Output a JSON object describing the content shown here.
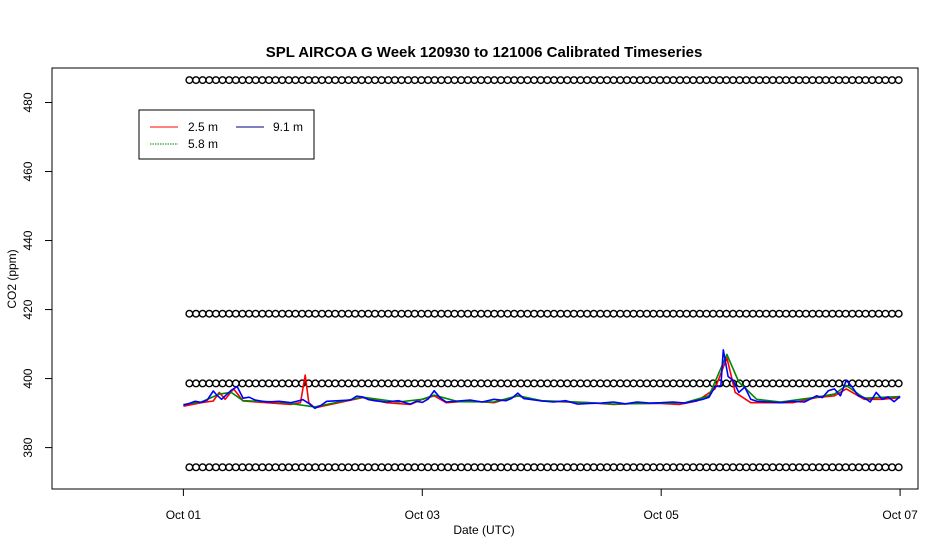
{
  "chart_data": {
    "type": "line",
    "title": "SPL AIRCOA G  Week 120930 to 121006  Calibrated Timeseries",
    "xlabel": "Date (UTC)",
    "ylabel": "CO2 (ppm)",
    "xlim": [
      -1.1,
      6.15
    ],
    "ylim": [
      368,
      490
    ],
    "x_ticks": [
      {
        "x": 0,
        "label": "Oct 01"
      },
      {
        "x": 2,
        "label": "Oct 03"
      },
      {
        "x": 4,
        "label": "Oct 05"
      },
      {
        "x": 6,
        "label": "Oct 07"
      }
    ],
    "y_ticks": [
      380,
      400,
      420,
      440,
      460,
      480
    ],
    "x_unit": "days since Oct 01 00:00 UTC",
    "legend": {
      "position": "top-left",
      "entries": [
        {
          "label": "2.5 m",
          "color": "#ff0000"
        },
        {
          "label": "5.8 m",
          "color": "#008800"
        },
        {
          "label": "9.1 m",
          "color": "#0000ff"
        }
      ]
    },
    "series": [
      {
        "name": "2.5 m",
        "color": "#ff0000",
        "points": [
          [
            0,
            392.0
          ],
          [
            0.15,
            393.0
          ],
          [
            0.25,
            393.5
          ],
          [
            0.3,
            396
          ],
          [
            0.35,
            394
          ],
          [
            0.42,
            397
          ],
          [
            0.5,
            393.5
          ],
          [
            0.7,
            393
          ],
          [
            0.9,
            392.5
          ],
          [
            0.98,
            393
          ],
          [
            1.02,
            401
          ],
          [
            1.05,
            393
          ],
          [
            1.1,
            391.5
          ],
          [
            1.3,
            393
          ],
          [
            1.5,
            394.5
          ],
          [
            1.7,
            393
          ],
          [
            1.9,
            392.5
          ],
          [
            2.0,
            394
          ],
          [
            2.1,
            395
          ],
          [
            2.2,
            393
          ],
          [
            2.4,
            393.5
          ],
          [
            2.6,
            393
          ],
          [
            2.8,
            395
          ],
          [
            3.0,
            393.5
          ],
          [
            3.2,
            393.2
          ],
          [
            3.4,
            393
          ],
          [
            3.6,
            392.5
          ],
          [
            3.8,
            392.8
          ],
          [
            4.0,
            392.8
          ],
          [
            4.15,
            392.5
          ],
          [
            4.3,
            393.5
          ],
          [
            4.45,
            397
          ],
          [
            4.55,
            406
          ],
          [
            4.62,
            396
          ],
          [
            4.75,
            393
          ],
          [
            4.9,
            393
          ],
          [
            5.1,
            393
          ],
          [
            5.3,
            394.5
          ],
          [
            5.45,
            395
          ],
          [
            5.55,
            397
          ],
          [
            5.7,
            394
          ],
          [
            5.85,
            394
          ],
          [
            6.0,
            394.5
          ]
        ]
      },
      {
        "name": "5.8 m",
        "color": "#008800",
        "points": [
          [
            0,
            392.5
          ],
          [
            0.15,
            393.2
          ],
          [
            0.3,
            395.5
          ],
          [
            0.4,
            396
          ],
          [
            0.5,
            393.6
          ],
          [
            0.8,
            393.2
          ],
          [
            1.1,
            391.8
          ],
          [
            1.3,
            393.2
          ],
          [
            1.5,
            394.6
          ],
          [
            1.8,
            393.2
          ],
          [
            2.0,
            394
          ],
          [
            2.1,
            395.2
          ],
          [
            2.3,
            393.3
          ],
          [
            2.6,
            393.2
          ],
          [
            2.8,
            395
          ],
          [
            3.0,
            393.6
          ],
          [
            3.3,
            393.2
          ],
          [
            3.6,
            392.6
          ],
          [
            4.0,
            392.9
          ],
          [
            4.2,
            393
          ],
          [
            4.4,
            395
          ],
          [
            4.55,
            407
          ],
          [
            4.65,
            399
          ],
          [
            4.8,
            394
          ],
          [
            5.0,
            393.2
          ],
          [
            5.3,
            394.6
          ],
          [
            5.45,
            395.5
          ],
          [
            5.55,
            398
          ],
          [
            5.7,
            394.3
          ],
          [
            6.0,
            394.8
          ]
        ]
      },
      {
        "name": "9.1 m",
        "color": "#0000ff",
        "points": [
          [
            0,
            392.3
          ],
          [
            0.05,
            392.8
          ],
          [
            0.1,
            393.4
          ],
          [
            0.15,
            393.1
          ],
          [
            0.2,
            393.8
          ],
          [
            0.25,
            396.4
          ],
          [
            0.28,
            395.2
          ],
          [
            0.32,
            394.0
          ],
          [
            0.35,
            395.0
          ],
          [
            0.4,
            396.6
          ],
          [
            0.45,
            397.7
          ],
          [
            0.5,
            394.3
          ],
          [
            0.55,
            394.6
          ],
          [
            0.6,
            393.8
          ],
          [
            0.7,
            393.2
          ],
          [
            0.8,
            393.4
          ],
          [
            0.9,
            393.0
          ],
          [
            0.95,
            393.4
          ],
          [
            1.0,
            393.9
          ],
          [
            1.05,
            392.8
          ],
          [
            1.1,
            391.4
          ],
          [
            1.15,
            392.2
          ],
          [
            1.2,
            393.4
          ],
          [
            1.3,
            393.6
          ],
          [
            1.4,
            393.8
          ],
          [
            1.45,
            394.9
          ],
          [
            1.5,
            394.7
          ],
          [
            1.55,
            393.9
          ],
          [
            1.6,
            393.6
          ],
          [
            1.7,
            393.2
          ],
          [
            1.8,
            393.6
          ],
          [
            1.9,
            392.6
          ],
          [
            1.95,
            393.4
          ],
          [
            2.0,
            393.1
          ],
          [
            2.05,
            394.1
          ],
          [
            2.1,
            396.5
          ],
          [
            2.15,
            394.4
          ],
          [
            2.2,
            393.2
          ],
          [
            2.3,
            393.5
          ],
          [
            2.4,
            393.8
          ],
          [
            2.5,
            393.2
          ],
          [
            2.6,
            394.0
          ],
          [
            2.7,
            393.6
          ],
          [
            2.75,
            394.3
          ],
          [
            2.8,
            395.8
          ],
          [
            2.85,
            394.2
          ],
          [
            2.9,
            394.0
          ],
          [
            3.0,
            393.5
          ],
          [
            3.1,
            393.2
          ],
          [
            3.2,
            393.6
          ],
          [
            3.3,
            392.6
          ],
          [
            3.4,
            392.8
          ],
          [
            3.5,
            392.9
          ],
          [
            3.6,
            393.2
          ],
          [
            3.7,
            392.7
          ],
          [
            3.8,
            393.2
          ],
          [
            3.9,
            392.9
          ],
          [
            4.0,
            393.0
          ],
          [
            4.1,
            393.2
          ],
          [
            4.2,
            392.9
          ],
          [
            4.25,
            393.3
          ],
          [
            4.35,
            394.0
          ],
          [
            4.4,
            394.6
          ],
          [
            4.45,
            397.6
          ],
          [
            4.5,
            398.0
          ],
          [
            4.52,
            408.3
          ],
          [
            4.56,
            400.6
          ],
          [
            4.6,
            399.5
          ],
          [
            4.65,
            396.0
          ],
          [
            4.7,
            397.5
          ],
          [
            4.75,
            394.0
          ],
          [
            4.8,
            393.4
          ],
          [
            4.9,
            393.2
          ],
          [
            5.0,
            393.0
          ],
          [
            5.1,
            393.4
          ],
          [
            5.2,
            393.2
          ],
          [
            5.25,
            394.1
          ],
          [
            5.3,
            395.0
          ],
          [
            5.35,
            394.5
          ],
          [
            5.4,
            396.5
          ],
          [
            5.45,
            397.0
          ],
          [
            5.5,
            395.0
          ],
          [
            5.55,
            399.5
          ],
          [
            5.6,
            397.5
          ],
          [
            5.65,
            395.0
          ],
          [
            5.7,
            394.5
          ],
          [
            5.75,
            393.2
          ],
          [
            5.8,
            396.0
          ],
          [
            5.85,
            394.0
          ],
          [
            5.9,
            394.7
          ],
          [
            5.95,
            393.3
          ],
          [
            6.0,
            394.8
          ]
        ]
      }
    ],
    "calibration_markers": {
      "symbol": "open-circle",
      "color": "#000000",
      "rows": [
        {
          "y": 486.5,
          "x_start": 0.05,
          "x_end": 6.0,
          "spacing": 0.0555
        },
        {
          "y": 418.8,
          "x_start": 0.05,
          "x_end": 6.0,
          "spacing": 0.0555
        },
        {
          "y": 398.6,
          "x_start": 0.05,
          "x_end": 6.0,
          "spacing": 0.0555
        },
        {
          "y": 374.3,
          "x_start": 0.05,
          "x_end": 6.0,
          "spacing": 0.0555
        }
      ]
    }
  }
}
